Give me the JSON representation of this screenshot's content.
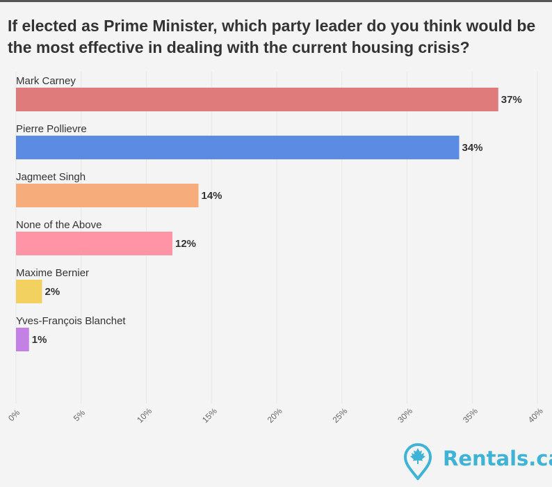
{
  "title": "If elected as Prime Minister, which party leader do you think would be the most effective in dealing with the current housing crisis?",
  "brand": {
    "name": "Rentals.ca",
    "color": "#3fb3d6",
    "icon": "map-pin-maple-leaf-icon"
  },
  "colors": {
    "background": "#f4f4f4",
    "grid": "#e6e6e6",
    "text": "#333333"
  },
  "chart_data": {
    "type": "bar",
    "orientation": "horizontal",
    "title": "If elected as Prime Minister, which party leader do you think would be the most effective in dealing with the current housing crisis?",
    "categories": [
      "Mark Carney",
      "Pierre Pollievre",
      "Jagmeet Singh",
      "None of the Above",
      "Maxime Bernier",
      "Yves-François Blanchet"
    ],
    "values": [
      37,
      34,
      14,
      12,
      2,
      1
    ],
    "value_labels": [
      "37%",
      "34%",
      "14%",
      "12%",
      "2%",
      "1%"
    ],
    "colors": [
      "#e07b7b",
      "#5b8be3",
      "#f6ad7b",
      "#ff94a7",
      "#f2d160",
      "#c381e3"
    ],
    "xlim": [
      0,
      40
    ],
    "xticks": [
      "0%",
      "5%",
      "10%",
      "15%",
      "20%",
      "25%",
      "30%",
      "35%",
      "40%"
    ],
    "grid": true,
    "legend": "none"
  }
}
